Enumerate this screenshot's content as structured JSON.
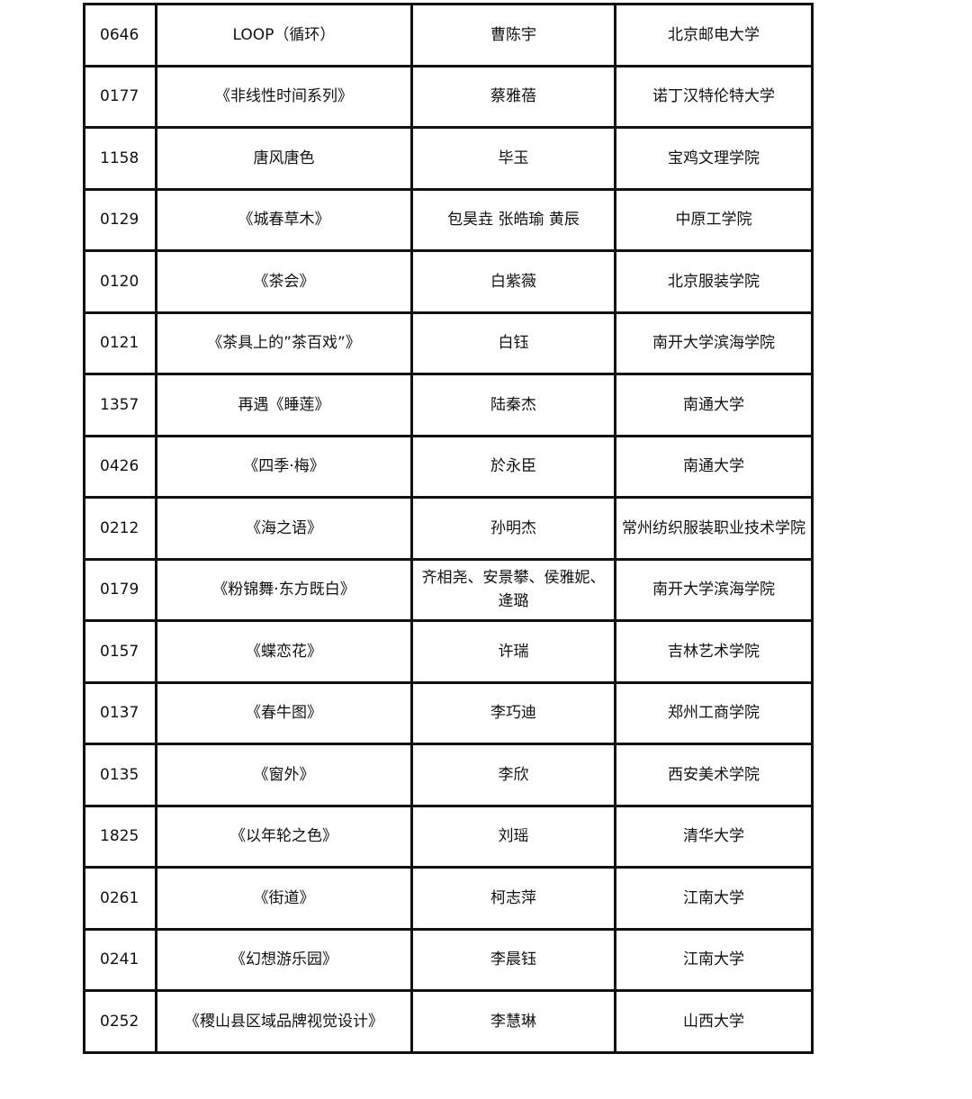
{
  "rows": [
    [
      "0646",
      "LOOP（循环）",
      "曹陈宇",
      "北京邮电大学"
    ],
    [
      "0177",
      "《非线性时间系列》",
      "蔡雅蓓",
      "诺丁汉特伦特大学"
    ],
    [
      "1158",
      "唐风唐色",
      "毕玉",
      "宝鸡文理学院"
    ],
    [
      "0129",
      "《城春草木》",
      "包昊垚 张皓瑜 黄辰",
      "中原工学院"
    ],
    [
      "0120",
      "《茶会》",
      "白紫薇",
      "北京服装学院"
    ],
    [
      "0121",
      "《茶具上的”茶百戏”》",
      "白钰",
      "南开大学滨海学院"
    ],
    [
      "1357",
      "再遇《睡莲》",
      "陆秦杰",
      "南通大学"
    ],
    [
      "0426",
      "《四季·梅》",
      "於永臣",
      "南通大学"
    ],
    [
      "0212",
      "《海之语》",
      "孙明杰",
      "常州纺织服装职业技术学院"
    ],
    [
      "0179",
      "《粉锦舞·东方既白》",
      "齐相尧、安景攀、侯雅妮、逄璐",
      "南开大学滨海学院"
    ],
    [
      "0157",
      "《蝶恋花》",
      "许瑞",
      "吉林艺术学院"
    ],
    [
      "0137",
      "《春牛图》",
      "李巧迪",
      "郑州工商学院"
    ],
    [
      "0135",
      "《窗外》",
      "李欣",
      "西安美术学院"
    ],
    [
      "1825",
      "《以年轮之色》",
      "刘瑶",
      "清华大学"
    ],
    [
      "0261",
      "《街道》",
      "柯志萍",
      "江南大学"
    ],
    [
      "0241",
      "《幻想游乐园》",
      "李晨钰",
      "江南大学"
    ],
    [
      "0252",
      "《稷山县区域品牌视觉设计》",
      "李慧琳",
      "山西大学"
    ]
  ]
}
